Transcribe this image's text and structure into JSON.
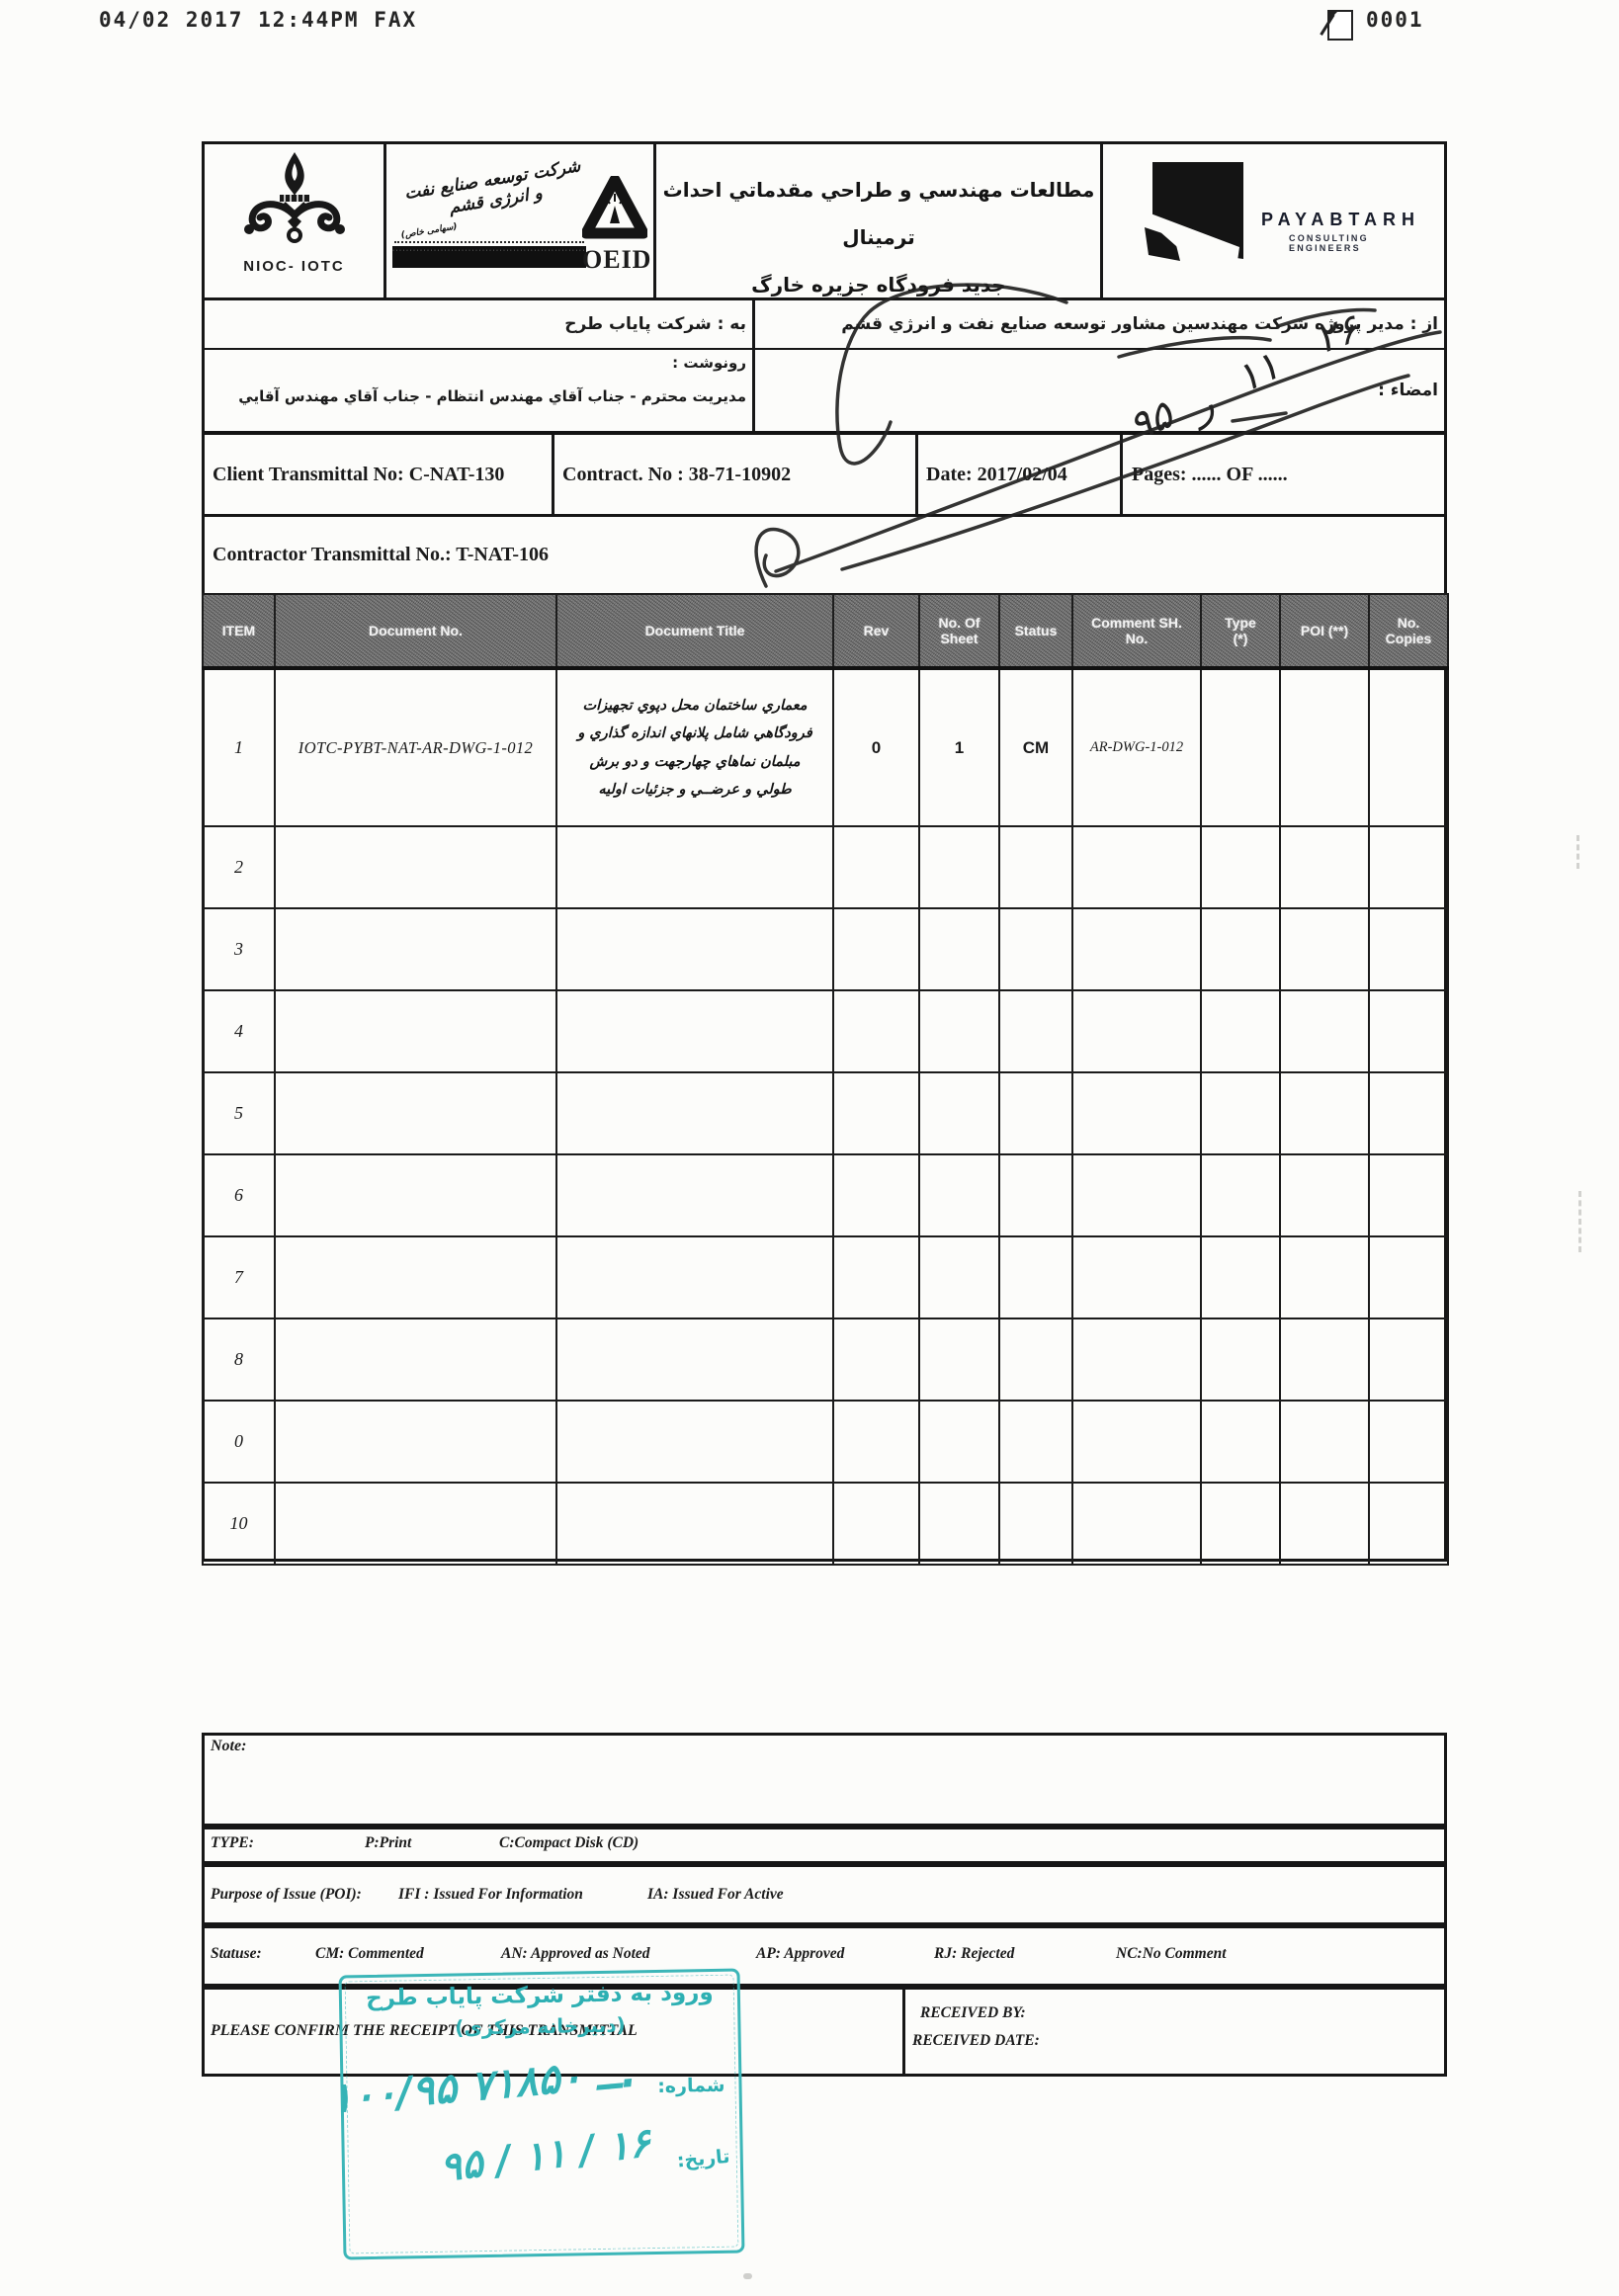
{
  "fax_header": {
    "left_text": "04/02 2017 12:44PM FAX",
    "page_icon": "fax-page-icon",
    "page_number": "0001"
  },
  "header": {
    "nioc": {
      "caption": "NIOC- IOTC"
    },
    "oeid": {
      "calligraphy": "شرکت توسعه صنایع نفت و انرژی قشم",
      "calligraphy_sub": "(سهامی خاص)",
      "banner_text": "·························································",
      "wordmark": "OEID"
    },
    "title_line1": "مطالعات مهندسي و طراحي مقدماتي احداث ترمينال",
    "title_line2": "جديد فرودگاه جزيره خارگ",
    "payabtarh": {
      "name": "PAYABTARH",
      "subtitle": "CONSULTING ENGINEERS"
    }
  },
  "routing": {
    "from_line": "از : مدير پروژه شركت مهندسين مشاور توسعه صنايع نفت و انرژي قشم",
    "to_line": "به : شركت پاياب طرح",
    "cc_label": "رونوشت :",
    "cc_value": "مديريت محترم - جناب آقاي مهندس انتظام - جناب آقاي مهندس آقايي",
    "signature_label": "امضاء :",
    "signature_handwriting": [
      "۹۵",
      "ر",
      "۱۱",
      "۲۶"
    ]
  },
  "transmittal": {
    "client_no": "Client  Transmittal  No: C-NAT-130",
    "contract_no": "Contract. No : 38-71-10902",
    "date": "Date: 2017/02/04",
    "pages": "Pages: ......    OF ......",
    "contractor_no": "Contractor Transmittal No.:  T-NAT-106"
  },
  "table": {
    "headers": [
      "ITEM",
      "Document No.",
      "Document Title",
      "Rev",
      "No. Of\nSheet",
      "Status",
      "Comment SH.\nNo.",
      "Type\n(*)",
      "POI  (**)",
      "No.\nCopies"
    ],
    "rows": [
      {
        "item": "1",
        "doc_no": "IOTC-PYBT-NAT-AR-DWG-1-012",
        "title": "معماري ساختمان محل دپوي تجهيزات فرودگاهي شامل پلانهاي اندازه گذاري و مبلمان نماهاي چهارجهت و دو برش طولي و عرضــي و جزئيات اوليه",
        "rev": "0",
        "sheets": "1",
        "status": "CM",
        "comment_sh_no": "AR-DWG-1-012",
        "type": "",
        "poi": "",
        "copies": ""
      },
      {
        "item": "2",
        "doc_no": "",
        "title": "",
        "rev": "",
        "sheets": "",
        "status": "",
        "comment_sh_no": "",
        "type": "",
        "poi": "",
        "copies": ""
      },
      {
        "item": "3",
        "doc_no": "",
        "title": "",
        "rev": "",
        "sheets": "",
        "status": "",
        "comment_sh_no": "",
        "type": "",
        "poi": "",
        "copies": ""
      },
      {
        "item": "4",
        "doc_no": "",
        "title": "",
        "rev": "",
        "sheets": "",
        "status": "",
        "comment_sh_no": "",
        "type": "",
        "poi": "",
        "copies": ""
      },
      {
        "item": "5",
        "doc_no": "",
        "title": "",
        "rev": "",
        "sheets": "",
        "status": "",
        "comment_sh_no": "",
        "type": "",
        "poi": "",
        "copies": ""
      },
      {
        "item": "6",
        "doc_no": "",
        "title": "",
        "rev": "",
        "sheets": "",
        "status": "",
        "comment_sh_no": "",
        "type": "",
        "poi": "",
        "copies": ""
      },
      {
        "item": "7",
        "doc_no": "",
        "title": "",
        "rev": "",
        "sheets": "",
        "status": "",
        "comment_sh_no": "",
        "type": "",
        "poi": "",
        "copies": ""
      },
      {
        "item": "8",
        "doc_no": "",
        "title": "",
        "rev": "",
        "sheets": "",
        "status": "",
        "comment_sh_no": "",
        "type": "",
        "poi": "",
        "copies": ""
      },
      {
        "item": "0",
        "doc_no": "",
        "title": "",
        "rev": "",
        "sheets": "",
        "status": "",
        "comment_sh_no": "",
        "type": "",
        "poi": "",
        "copies": ""
      },
      {
        "item": "10",
        "doc_no": "",
        "title": "",
        "rev": "",
        "sheets": "",
        "status": "",
        "comment_sh_no": "",
        "type": "",
        "poi": "",
        "copies": ""
      }
    ]
  },
  "footer": {
    "note_label": "Note:",
    "type_label": "TYPE:",
    "type_items": [
      "P:Print",
      "C:Compact Disk (CD)"
    ],
    "poi_label": "Purpose of Issue (POI):",
    "poi_items": [
      "IFI : Issued For Information",
      "IA: Issued For Active"
    ],
    "status_label": "Statuse:",
    "status_items": [
      "CM: Commented",
      "AN: Approved as Noted",
      "AP: Approved",
      "RJ: Rejected",
      "NC:No Comment"
    ],
    "confirm_text": "PLEASE CONFIRM THE RECEIPT OF THIS TRANSMITTAL",
    "received_by": "RECEIVED BY:",
    "received_date": "RECEIVED DATE:"
  },
  "stamp": {
    "color": "#3cb6b8",
    "line1": "ورود به دفتر شرکت پایاب طرح",
    "line2": "(دبیرخانه مرکزی)",
    "no_label": "شماره:",
    "no_value": "۱۰۰/۹۵ ــ ۷۱۸۵۰.",
    "date_label": "تاریخ:",
    "date_value": "۹۵ / ۱۱ / ۱۶"
  }
}
